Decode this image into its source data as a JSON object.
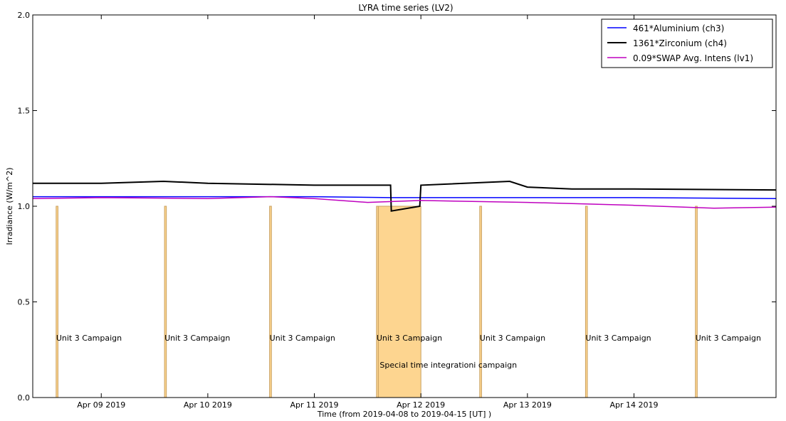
{
  "chart_data": {
    "type": "line",
    "title": "LYRA time series (LV2)",
    "xlabel": "Time (from 2019-04-08 to 2019-04-15 [UT] )",
    "ylabel": "Irradiance (W/m^2)",
    "xlim": [
      "2019-04-08 08:34",
      "2019-04-15 08:00"
    ],
    "ylim": [
      0.0,
      2.0
    ],
    "yticks": [
      "0.0",
      "0.5",
      "1.0",
      "1.5",
      "2.0"
    ],
    "xticks": [
      {
        "label": "Apr 09 2019",
        "date": "2019-04-09"
      },
      {
        "label": "Apr 10 2019",
        "date": "2019-04-10"
      },
      {
        "label": "Apr 11 2019",
        "date": "2019-04-11"
      },
      {
        "label": "Apr 12 2019",
        "date": "2019-04-12"
      },
      {
        "label": "Apr 13 2019",
        "date": "2019-04-13"
      },
      {
        "label": "Apr 14 2019",
        "date": "2019-04-14"
      }
    ],
    "legend_position": "top-right",
    "series": [
      {
        "name": "461*Aluminium (ch3)",
        "color": "#0000ff",
        "x": [
          "2019-04-08 08:34",
          "2019-04-09 00:00",
          "2019-04-10 00:00",
          "2019-04-11 00:00",
          "2019-04-11 17:00",
          "2019-04-12 00:00",
          "2019-04-13 00:00",
          "2019-04-14 00:00",
          "2019-04-15 08:00"
        ],
        "y": [
          1.05,
          1.05,
          1.05,
          1.05,
          1.045,
          1.045,
          1.045,
          1.045,
          1.04
        ]
      },
      {
        "name": "1361*Zirconium (ch4)",
        "color": "#000000",
        "x": [
          "2019-04-08 08:34",
          "2019-04-09 00:00",
          "2019-04-09 14:00",
          "2019-04-10 00:00",
          "2019-04-11 00:00",
          "2019-04-11 17:10",
          "2019-04-11 17:20",
          "2019-04-11 23:45",
          "2019-04-12 00:00",
          "2019-04-12 20:00",
          "2019-04-13 00:00",
          "2019-04-13 10:00",
          "2019-04-14 00:00",
          "2019-04-15 08:00"
        ],
        "y": [
          1.12,
          1.12,
          1.13,
          1.12,
          1.11,
          1.11,
          0.975,
          1.0,
          1.11,
          1.13,
          1.1,
          1.09,
          1.09,
          1.085
        ]
      },
      {
        "name": "0.09*SWAP Avg. Intens (lv1)",
        "color": "#bf00bf",
        "x": [
          "2019-04-08 08:34",
          "2019-04-09 00:00",
          "2019-04-10 00:00",
          "2019-04-10 14:00",
          "2019-04-11 00:00",
          "2019-04-11 12:00",
          "2019-04-12 00:00",
          "2019-04-13 00:00",
          "2019-04-14 00:00",
          "2019-04-14 18:00",
          "2019-04-15 08:00"
        ],
        "y": [
          1.04,
          1.045,
          1.04,
          1.05,
          1.04,
          1.02,
          1.03,
          1.02,
          1.005,
          0.99,
          0.995
        ]
      }
    ],
    "annotations": [
      {
        "type": "bar",
        "label": "Unit 3 Campaign",
        "x_start": "2019-04-08 13:50",
        "x_end": "2019-04-08 14:15",
        "height": 1.0
      },
      {
        "type": "bar",
        "label": "Unit 3 Campaign",
        "x_start": "2019-04-09 14:15",
        "x_end": "2019-04-09 14:40",
        "height": 1.0
      },
      {
        "type": "bar",
        "label": "Unit 3 Campaign",
        "x_start": "2019-04-10 13:55",
        "x_end": "2019-04-10 14:20",
        "height": 1.0
      },
      {
        "type": "bar",
        "label": "Unit 3 Campaign",
        "x_start": "2019-04-11 14:00",
        "x_end": "2019-04-11 14:25",
        "height": 1.0
      },
      {
        "type": "bar",
        "label": "Unit 3 Campaign",
        "x_start": "2019-04-12 13:15",
        "x_end": "2019-04-12 13:40",
        "height": 1.0
      },
      {
        "type": "bar",
        "label": "Unit 3 Campaign",
        "x_start": "2019-04-13 13:05",
        "x_end": "2019-04-13 13:30",
        "height": 1.0
      },
      {
        "type": "bar",
        "label": "Unit 3 Campaign",
        "x_start": "2019-04-14 13:50",
        "x_end": "2019-04-14 14:15",
        "height": 1.0
      },
      {
        "type": "bar",
        "label": "Special time integrationi campaign",
        "x_start": "2019-04-11 14:25",
        "x_end": "2019-04-12 00:00",
        "height": 1.0
      }
    ]
  },
  "colors": {
    "campaign_fill": "#fdd590",
    "campaign_edge": "#c8a060",
    "axis": "#000000"
  }
}
